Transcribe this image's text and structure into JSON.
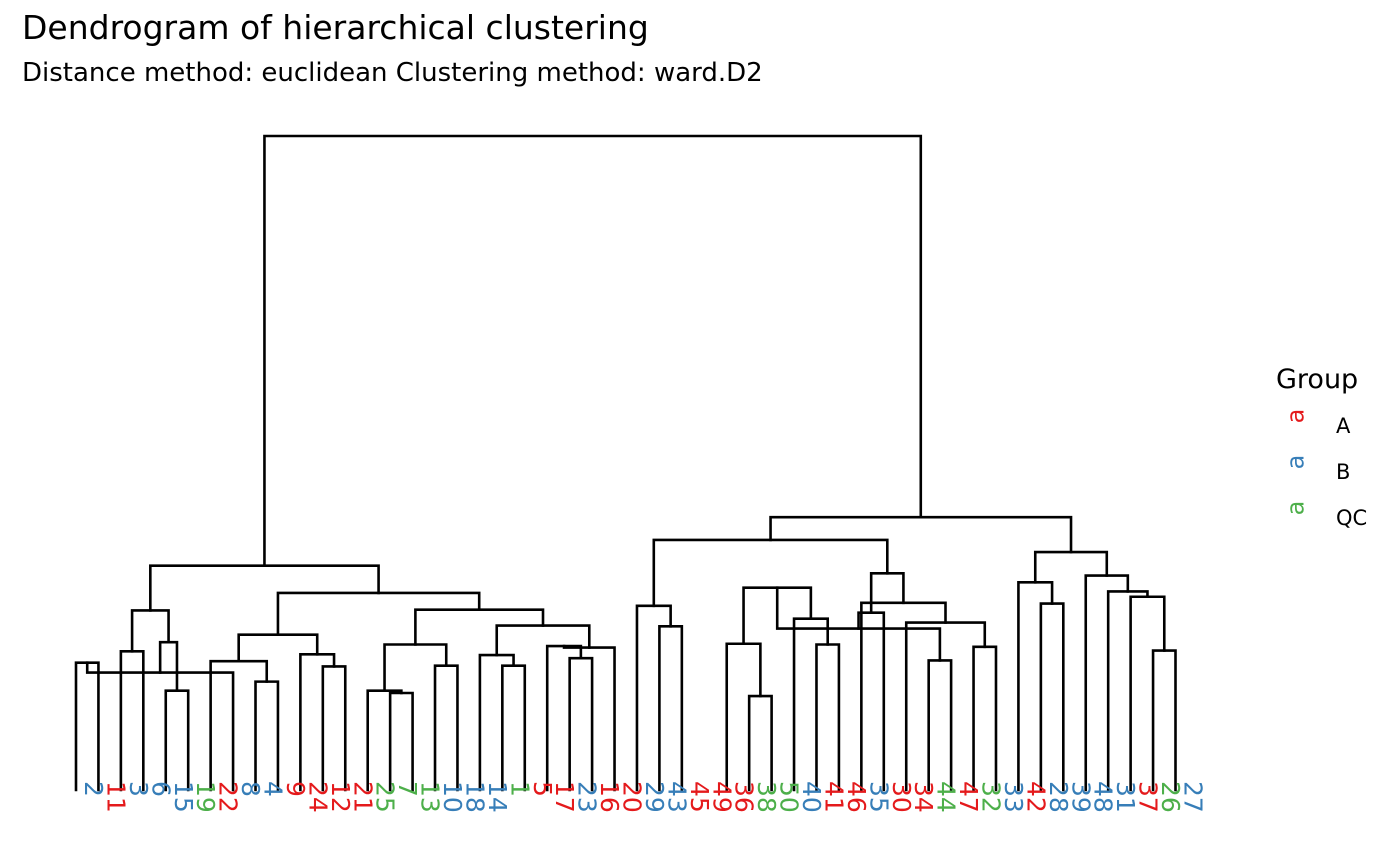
{
  "colors": {
    "A": "#E41A1C",
    "B": "#377EB8",
    "QC": "#4DAF4A"
  },
  "chart_data": {
    "type": "dendrogram",
    "title": "Dendrogram of hierarchical clustering",
    "subtitle": "Distance method: euclidean Clustering method: ward.D2",
    "leaves": [
      {
        "label": "2",
        "group": "B"
      },
      {
        "label": "11",
        "group": "A"
      },
      {
        "label": "3",
        "group": "B"
      },
      {
        "label": "6",
        "group": "B"
      },
      {
        "label": "15",
        "group": "B"
      },
      {
        "label": "19",
        "group": "QC"
      },
      {
        "label": "22",
        "group": "A"
      },
      {
        "label": "8",
        "group": "B"
      },
      {
        "label": "4",
        "group": "B"
      },
      {
        "label": "9",
        "group": "A"
      },
      {
        "label": "24",
        "group": "A"
      },
      {
        "label": "12",
        "group": "A"
      },
      {
        "label": "21",
        "group": "A"
      },
      {
        "label": "25",
        "group": "QC"
      },
      {
        "label": "7",
        "group": "QC"
      },
      {
        "label": "13",
        "group": "QC"
      },
      {
        "label": "10",
        "group": "B"
      },
      {
        "label": "18",
        "group": "B"
      },
      {
        "label": "14",
        "group": "B"
      },
      {
        "label": "1",
        "group": "QC"
      },
      {
        "label": "5",
        "group": "A"
      },
      {
        "label": "17",
        "group": "A"
      },
      {
        "label": "23",
        "group": "B"
      },
      {
        "label": "16",
        "group": "A"
      },
      {
        "label": "20",
        "group": "A"
      },
      {
        "label": "29",
        "group": "B"
      },
      {
        "label": "43",
        "group": "B"
      },
      {
        "label": "45",
        "group": "A"
      },
      {
        "label": "49",
        "group": "A"
      },
      {
        "label": "36",
        "group": "A"
      },
      {
        "label": "38",
        "group": "QC"
      },
      {
        "label": "50",
        "group": "QC"
      },
      {
        "label": "40",
        "group": "B"
      },
      {
        "label": "41",
        "group": "A"
      },
      {
        "label": "46",
        "group": "A"
      },
      {
        "label": "35",
        "group": "B"
      },
      {
        "label": "30",
        "group": "A"
      },
      {
        "label": "34",
        "group": "A"
      },
      {
        "label": "44",
        "group": "QC"
      },
      {
        "label": "47",
        "group": "A"
      },
      {
        "label": "32",
        "group": "QC"
      },
      {
        "label": "33",
        "group": "B"
      },
      {
        "label": "42",
        "group": "A"
      },
      {
        "label": "28",
        "group": "B"
      },
      {
        "label": "39",
        "group": "B"
      },
      {
        "label": "48",
        "group": "B"
      },
      {
        "label": "31",
        "group": "B"
      },
      {
        "label": "37",
        "group": "A"
      },
      {
        "label": "26",
        "group": "QC"
      },
      {
        "label": "27",
        "group": "B"
      }
    ],
    "merges": [
      [
        0,
        1,
        0.168
      ],
      [
        2,
        3,
        0.183
      ],
      [
        4,
        5,
        0.131
      ],
      [
        8,
        9,
        0.143
      ],
      [
        7,
        50,
        0.155
      ],
      [
        6,
        53,
        0.17
      ],
      [
        52,
        54,
        0.195
      ],
      [
        11,
        12,
        0.163
      ],
      [
        10,
        57,
        0.179
      ],
      [
        55,
        58,
        0.205
      ],
      [
        14,
        15,
        0.128
      ],
      [
        13,
        60,
        0.131
      ],
      [
        16,
        17,
        0.164
      ],
      [
        61,
        62,
        0.192
      ],
      [
        19,
        20,
        0.164
      ],
      [
        18,
        64,
        0.178
      ],
      [
        22,
        23,
        0.174
      ],
      [
        21,
        66,
        0.19
      ],
      [
        24,
        67,
        0.188
      ],
      [
        65,
        68,
        0.217
      ],
      [
        63,
        69,
        0.238
      ],
      [
        59,
        70,
        0.26
      ],
      [
        51,
        56,
        0.237
      ],
      [
        71,
        72,
        0.296
      ],
      [
        26,
        27,
        0.216
      ],
      [
        25,
        74,
        0.243
      ],
      [
        30,
        31,
        0.124
      ],
      [
        29,
        76,
        0.193
      ],
      [
        33,
        34,
        0.192
      ],
      [
        32,
        78,
        0.226
      ],
      [
        77,
        79,
        0.267
      ],
      [
        38,
        39,
        0.171
      ],
      [
        40,
        41,
        0.189
      ],
      [
        80,
        81,
        0.213
      ],
      [
        37,
        82,
        0.221
      ],
      [
        36,
        83,
        0.234
      ],
      [
        35,
        84,
        0.247
      ],
      [
        85,
        86,
        0.286
      ],
      [
        75,
        87,
        0.33
      ],
      [
        43,
        44,
        0.246
      ],
      [
        42,
        89,
        0.274
      ],
      [
        48,
        49,
        0.184
      ],
      [
        47,
        91,
        0.255
      ],
      [
        46,
        92,
        0.262
      ],
      [
        45,
        93,
        0.283
      ],
      [
        90,
        94,
        0.314
      ],
      [
        88,
        95,
        0.36
      ],
      [
        73,
        96,
        0.863
      ]
    ]
  },
  "legend": {
    "title": "Group",
    "key_glyph": "a",
    "items": [
      {
        "key": "A",
        "label": "A"
      },
      {
        "key": "B",
        "label": "B"
      },
      {
        "key": "QC",
        "label": "QC"
      }
    ]
  }
}
